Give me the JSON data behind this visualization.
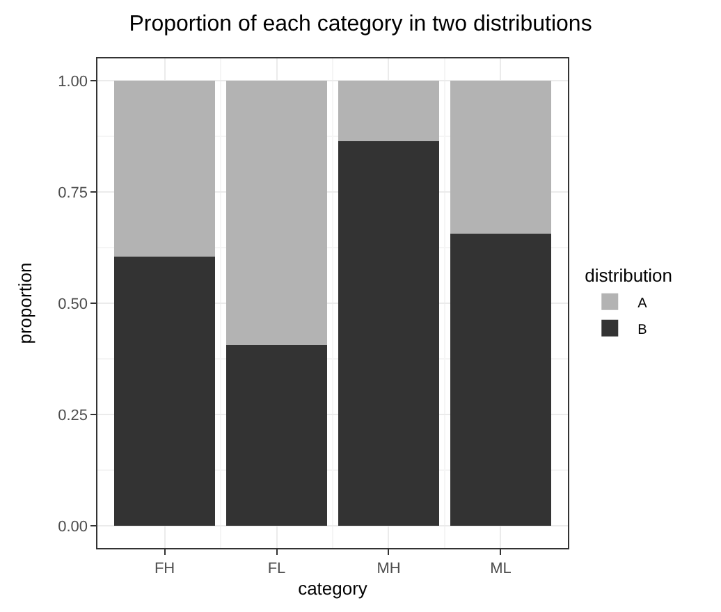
{
  "chart_data": {
    "type": "bar",
    "stacked": true,
    "title": "Proportion of each category in two distributions",
    "xlabel": "category",
    "ylabel": "proportion",
    "legend_title": "distribution",
    "categories": [
      "FH",
      "FL",
      "MH",
      "ML"
    ],
    "series": [
      {
        "name": "B",
        "color": "#333333",
        "values": [
          0.604,
          0.407,
          0.864,
          0.656
        ]
      },
      {
        "name": "A",
        "color": "#b3b3b3",
        "values": [
          0.396,
          0.593,
          0.136,
          0.344
        ]
      }
    ],
    "ylim": [
      -0.05,
      1.05
    ],
    "yticks": [
      {
        "value": 0,
        "label": "0.00"
      },
      {
        "value": 0.25,
        "label": "0.25"
      },
      {
        "value": 0.5,
        "label": "0.50"
      },
      {
        "value": 0.75,
        "label": "0.75"
      },
      {
        "value": 1,
        "label": "1.00"
      }
    ],
    "grid": true,
    "legend": "right"
  }
}
